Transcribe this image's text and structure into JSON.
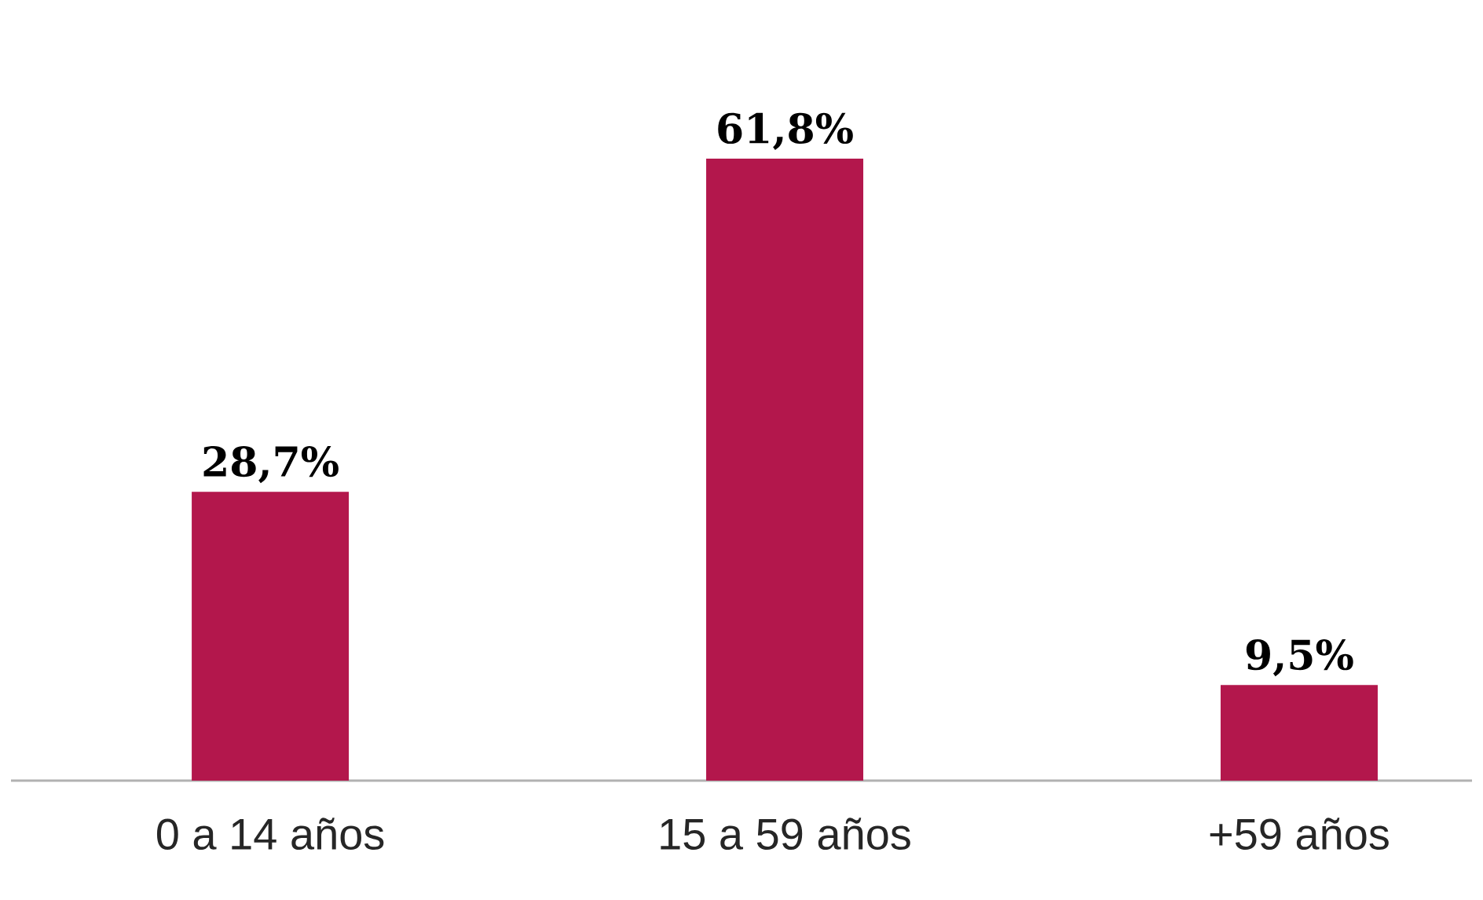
{
  "chart_data": {
    "type": "bar",
    "categories": [
      "0 a 14 años",
      "15 a 59 años",
      "+59 años"
    ],
    "values": [
      28.7,
      61.8,
      9.5
    ],
    "value_labels": [
      "28,7%",
      "61,8%",
      "9,5%"
    ],
    "color": "#b3174c"
  }
}
